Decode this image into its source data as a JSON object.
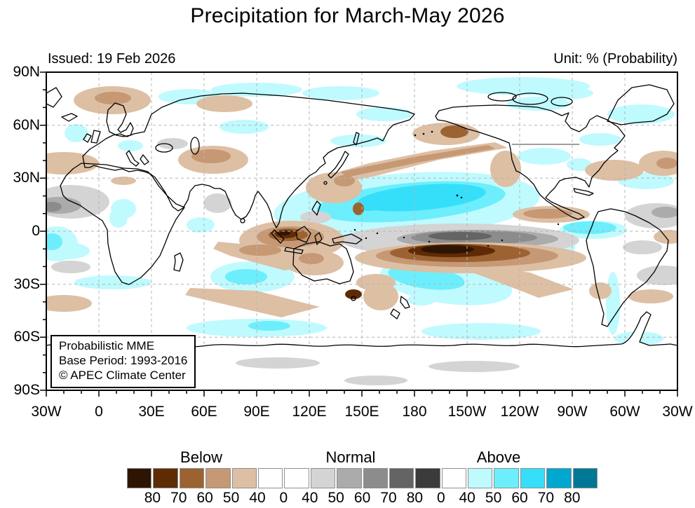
{
  "title": "Precipitation for March-May 2026",
  "header": {
    "issued_label": "Issued: 19 Feb 2026",
    "unit_label": "Unit: % (Probability)"
  },
  "map": {
    "x_axis": {
      "labels": [
        "30W",
        "0",
        "30E",
        "60E",
        "90E",
        "120E",
        "150E",
        "180",
        "150W",
        "120W",
        "90W",
        "60W",
        "30W"
      ]
    },
    "y_axis": {
      "labels": [
        "90N",
        "60N",
        "30N",
        "0",
        "30S",
        "60S",
        "90S"
      ]
    },
    "info_box": {
      "line1": "Probabilistic MME",
      "line2": "Base Period: 1993-2016",
      "line3": "© APEC Climate Center"
    }
  },
  "legend": {
    "section_labels": [
      "Below",
      "Normal",
      "Above"
    ],
    "colors": [
      "#2e1503",
      "#5e2b05",
      "#9c6231",
      "#c69874",
      "#ddbfa4",
      "#ffffff",
      "#ffffff",
      "#d4d4d4",
      "#ababab",
      "#8c8c8c",
      "#646464",
      "#3b3b3b",
      "#ffffff",
      "#bffaff",
      "#6ceefc",
      "#35dffa",
      "#00a7cf",
      "#007795"
    ],
    "boundary_values": [
      "80",
      "70",
      "60",
      "50",
      "40",
      "0",
      "40",
      "50",
      "60",
      "70",
      "80",
      "0",
      "40",
      "50",
      "60",
      "70",
      "80"
    ]
  },
  "chart_data": {
    "type": "heatmap",
    "title": "Precipitation for March-May 2026",
    "issued": "19 Feb 2026",
    "unit": "% (Probability)",
    "projection": "equirectangular world map, longitude 30W eastward to 30W (360 span), latitude 90S-90N",
    "x_ticks": [
      "30W",
      "0",
      "30E",
      "60E",
      "90E",
      "120E",
      "150E",
      "180",
      "150W",
      "120W",
      "90W",
      "60W",
      "30W"
    ],
    "y_ticks": [
      "90N",
      "60N",
      "30N",
      "0",
      "30S",
      "60S",
      "90S"
    ],
    "legend_categories": [
      "Below",
      "Normal",
      "Above"
    ],
    "legend_boundary_values": [
      80,
      70,
      60,
      50,
      40,
      0,
      40,
      50,
      60,
      70,
      80,
      0,
      40,
      50,
      60,
      70,
      80
    ],
    "legend_colors": [
      "#2e1503",
      "#5e2b05",
      "#9c6231",
      "#c69874",
      "#ddbfa4",
      "#ffffff",
      "#ffffff",
      "#d4d4d4",
      "#ababab",
      "#8c8c8c",
      "#646464",
      "#3b3b3b",
      "#ffffff",
      "#bffaff",
      "#6ceefc",
      "#35dffa",
      "#00a7cf",
      "#007795"
    ],
    "notes": [
      "Probabilistic MME",
      "Base Period: 1993-2016",
      "© APEC Climate Center"
    ],
    "main_features": [
      "Above-normal (cyan) band over equatorial/north tropical Pacific, brightest near 180-150W 5-15N",
      "Below-normal core (dark brown) over south tropical Pacific ~170E-140W 5-15S with gray normal band along its north edge",
      "Below-normal (brown) over Maritime Continent / Indonesia",
      "Brown band across northwest Pacific near 30-40N from Japan northeastward and over Bering Sea/Alaska",
      "Normal (gray) over west Africa and eastern tropical Atlantic",
      "Brown patches: North Atlantic ~55N, central Asia, south Indian Ocean bands, Australia",
      "Pale cyan patches across Arctic, north Pacific subtropics, south Pacific ~25-35S and ~55S band"
    ]
  }
}
